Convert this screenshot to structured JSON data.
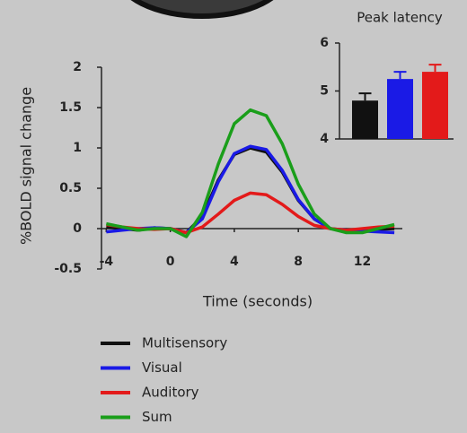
{
  "chart_data": [
    {
      "type": "line",
      "x_label": "Time (seconds)",
      "y_label": "%BOLD signal change",
      "x": [
        -4,
        -3,
        -2,
        -1,
        0,
        1,
        2,
        3,
        4,
        5,
        6,
        7,
        8,
        9,
        10,
        11,
        12,
        13,
        14
      ],
      "xlim": [
        -4.3,
        14.5
      ],
      "xticks": [
        -4,
        0,
        4,
        8,
        12
      ],
      "ylim": [
        -0.5,
        2
      ],
      "yticks": [
        -0.5,
        0,
        0.5,
        1,
        1.5,
        2
      ],
      "legend": "bottom",
      "series": [
        {
          "name": "Multisensory",
          "color": "#111111",
          "values": [
            0.02,
            0,
            -0.02,
            0.01,
            0,
            -0.05,
            0.15,
            0.6,
            0.92,
            1.0,
            0.95,
            0.7,
            0.35,
            0.12,
            0,
            -0.03,
            -0.02,
            -0.01,
            0
          ]
        },
        {
          "name": "Visual",
          "color": "#1a1ae6",
          "values": [
            -0.04,
            -0.02,
            0,
            0.01,
            0,
            -0.05,
            0.12,
            0.58,
            0.93,
            1.02,
            0.98,
            0.72,
            0.36,
            0.12,
            0,
            -0.02,
            -0.03,
            -0.04,
            -0.05
          ]
        },
        {
          "name": "Auditory",
          "color": "#e31a1a",
          "values": [
            0.05,
            0.02,
            0,
            -0.01,
            0,
            -0.05,
            0.02,
            0.18,
            0.35,
            0.44,
            0.42,
            0.3,
            0.15,
            0.04,
            0,
            -0.02,
            0,
            0.02,
            0.03
          ]
        },
        {
          "name": "Sum",
          "color": "#1a9e1a",
          "values": [
            0.06,
            0.02,
            -0.02,
            0,
            0,
            -0.1,
            0.2,
            0.8,
            1.3,
            1.47,
            1.4,
            1.05,
            0.55,
            0.18,
            0,
            -0.05,
            -0.05,
            0,
            0.05
          ]
        }
      ]
    },
    {
      "type": "bar",
      "title": "Peak latency",
      "values": [
        4.8,
        5.25,
        5.4
      ],
      "errors": [
        0.15,
        0.15,
        0.15
      ],
      "colors": [
        "#111111",
        "#1a1ae6",
        "#e31a1a"
      ],
      "ylim": [
        4,
        6
      ],
      "yticks": [
        4,
        5,
        6
      ]
    }
  ]
}
